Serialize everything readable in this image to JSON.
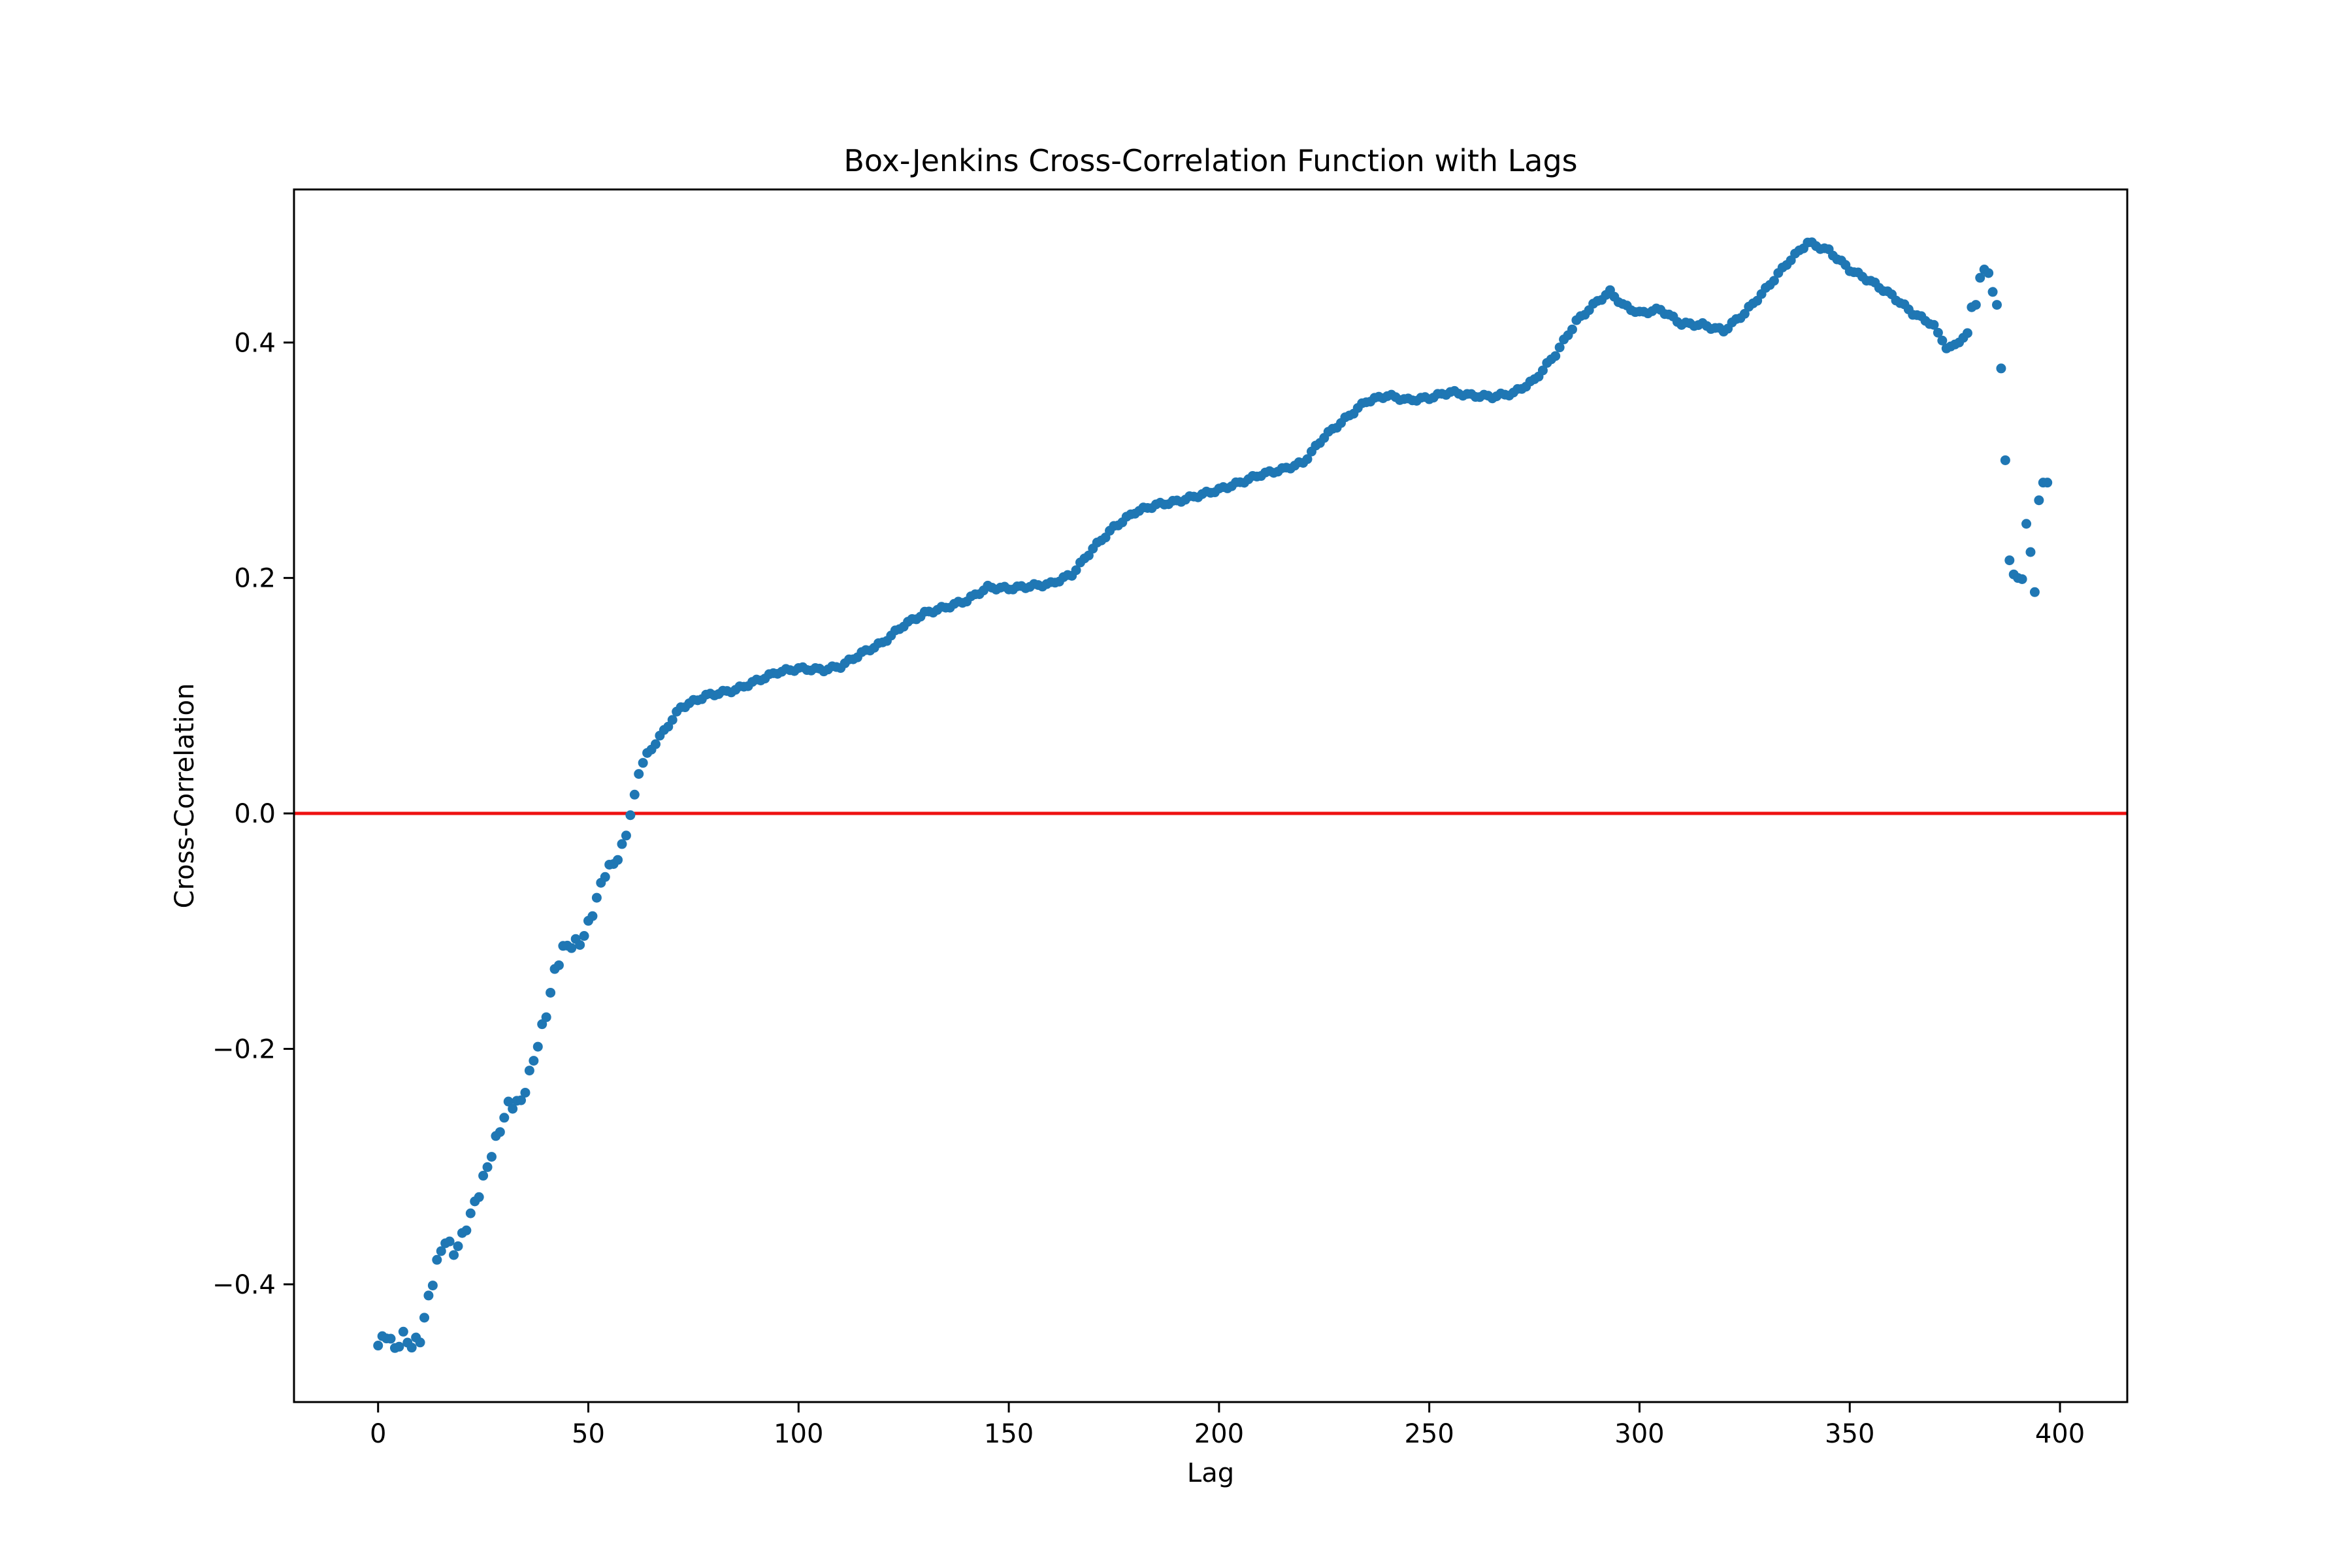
{
  "chart_data": {
    "type": "scatter",
    "title": "Box-Jenkins Cross-Correlation Function with Lags",
    "xlabel": "Lag",
    "ylabel": "Cross-Correlation",
    "xlim": [
      -20,
      416
    ],
    "ylim": [
      -0.5,
      0.53
    ],
    "xticks": [
      0,
      50,
      100,
      150,
      200,
      250,
      300,
      350,
      400
    ],
    "xtick_labels": [
      "0",
      "50",
      "100",
      "150",
      "200",
      "250",
      "300",
      "350",
      "400"
    ],
    "yticks": [
      -0.4,
      -0.2,
      0.0,
      0.2,
      0.4
    ],
    "ytick_labels": [
      "−0.4",
      "−0.2",
      "0.0",
      "0.2",
      "0.4"
    ],
    "grid": false,
    "reference_line": {
      "y": 0,
      "color": "#ee1111"
    },
    "marker_color": "#1f77b4",
    "anchors": [
      [
        0,
        -0.452
      ],
      [
        2,
        -0.442
      ],
      [
        4,
        -0.455
      ],
      [
        6,
        -0.444
      ],
      [
        8,
        -0.452
      ],
      [
        10,
        -0.446
      ],
      [
        12,
        -0.412
      ],
      [
        14,
        -0.382
      ],
      [
        16,
        -0.362
      ],
      [
        18,
        -0.373
      ],
      [
        20,
        -0.36
      ],
      [
        24,
        -0.322
      ],
      [
        28,
        -0.278
      ],
      [
        31,
        -0.248
      ],
      [
        34,
        -0.245
      ],
      [
        36,
        -0.222
      ],
      [
        40,
        -0.17
      ],
      [
        42,
        -0.135
      ],
      [
        44,
        -0.115
      ],
      [
        46,
        -0.111
      ],
      [
        48,
        -0.11
      ],
      [
        50,
        -0.095
      ],
      [
        54,
        -0.05
      ],
      [
        56,
        -0.043
      ],
      [
        58,
        -0.03
      ],
      [
        60,
        -0.003
      ],
      [
        62,
        0.035
      ],
      [
        64,
        0.05
      ],
      [
        68,
        0.07
      ],
      [
        72,
        0.09
      ],
      [
        78,
        0.1
      ],
      [
        85,
        0.105
      ],
      [
        95,
        0.12
      ],
      [
        100,
        0.123
      ],
      [
        106,
        0.122
      ],
      [
        110,
        0.125
      ],
      [
        115,
        0.136
      ],
      [
        120,
        0.145
      ],
      [
        125,
        0.16
      ],
      [
        130,
        0.17
      ],
      [
        135,
        0.175
      ],
      [
        140,
        0.181
      ],
      [
        145,
        0.192
      ],
      [
        150,
        0.191
      ],
      [
        155,
        0.193
      ],
      [
        160,
        0.195
      ],
      [
        165,
        0.203
      ],
      [
        170,
        0.225
      ],
      [
        175,
        0.243
      ],
      [
        180,
        0.256
      ],
      [
        185,
        0.262
      ],
      [
        190,
        0.265
      ],
      [
        195,
        0.27
      ],
      [
        200,
        0.275
      ],
      [
        205,
        0.281
      ],
      [
        210,
        0.288
      ],
      [
        215,
        0.292
      ],
      [
        220,
        0.298
      ],
      [
        225,
        0.32
      ],
      [
        230,
        0.335
      ],
      [
        235,
        0.35
      ],
      [
        240,
        0.355
      ],
      [
        245,
        0.351
      ],
      [
        250,
        0.353
      ],
      [
        255,
        0.358
      ],
      [
        260,
        0.355
      ],
      [
        265,
        0.354
      ],
      [
        270,
        0.357
      ],
      [
        275,
        0.368
      ],
      [
        280,
        0.39
      ],
      [
        285,
        0.418
      ],
      [
        290,
        0.435
      ],
      [
        293,
        0.443
      ],
      [
        296,
        0.432
      ],
      [
        300,
        0.425
      ],
      [
        305,
        0.428
      ],
      [
        310,
        0.416
      ],
      [
        315,
        0.415
      ],
      [
        320,
        0.41
      ],
      [
        325,
        0.425
      ],
      [
        330,
        0.445
      ],
      [
        335,
        0.467
      ],
      [
        340,
        0.485
      ],
      [
        345,
        0.478
      ],
      [
        350,
        0.462
      ],
      [
        355,
        0.452
      ],
      [
        360,
        0.44
      ],
      [
        365,
        0.425
      ],
      [
        370,
        0.415
      ],
      [
        373,
        0.395
      ],
      [
        376,
        0.4
      ],
      [
        378,
        0.408
      ],
      [
        379,
        0.43
      ],
      [
        380,
        0.432
      ],
      [
        381,
        0.455
      ],
      [
        382,
        0.462
      ],
      [
        383,
        0.459
      ],
      [
        384,
        0.443
      ],
      [
        385,
        0.432
      ],
      [
        386,
        0.378
      ],
      [
        387,
        0.3
      ],
      [
        388,
        0.215
      ],
      [
        389,
        0.203
      ],
      [
        390,
        0.2
      ],
      [
        391,
        0.199
      ],
      [
        392,
        0.246
      ],
      [
        393,
        0.222
      ],
      [
        394,
        0.188
      ],
      [
        395,
        0.266
      ],
      [
        396,
        0.281
      ],
      [
        397,
        0.281
      ]
    ],
    "x_range": [
      0,
      397
    ],
    "point_count": 398
  }
}
